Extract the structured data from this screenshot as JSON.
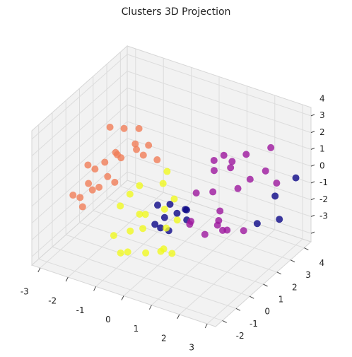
{
  "chart_data": {
    "type": "scatter3d",
    "title": "Clusters 3D Projection",
    "xlim": [
      -3.3,
      3.3
    ],
    "ylim": [
      -2.5,
      4.5
    ],
    "zlim": [
      -3.5,
      4.5
    ],
    "xticks": [
      -3,
      -2,
      -1,
      0,
      1,
      2,
      3
    ],
    "yticks": [
      -2,
      -1,
      0,
      1,
      2,
      3,
      4
    ],
    "zticks": [
      -3,
      -2,
      -1,
      0,
      1,
      2,
      3,
      4
    ],
    "grid": true,
    "series": [
      {
        "color": "#0d0887",
        "x": [
          0.0,
          0.3,
          -0.2,
          0.5,
          0.1,
          -0.3,
          0.4,
          2.5,
          3.0,
          2.8,
          0.2,
          -0.1,
          2.2,
          0.6
        ],
        "y": [
          0.5,
          0.8,
          0.2,
          1.0,
          0.0,
          0.6,
          1.3,
          3.5,
          4.0,
          3.2,
          0.4,
          1.1,
          2.8,
          0.9
        ],
        "z": [
          -1.0,
          -0.8,
          -1.3,
          -0.6,
          -1.2,
          -0.5,
          -0.9,
          -0.5,
          0.5,
          -1.5,
          -1.6,
          -0.7,
          -1.8,
          -1.1
        ]
      },
      {
        "color": "#f07d57",
        "x": [
          -2.5,
          -2.1,
          -1.8,
          -2.8,
          -1.5,
          -2.3,
          -2.0,
          -1.2,
          -2.6,
          -1.9,
          -2.2,
          -1.6,
          -2.9,
          -1.4,
          -2.4,
          -1.7,
          -2.0,
          -1.1,
          -2.7,
          -1.3,
          -2.5,
          -1.8
        ],
        "y": [
          0.5,
          1.2,
          0.0,
          -0.5,
          1.5,
          2.0,
          -1.0,
          0.8,
          1.0,
          2.5,
          -0.3,
          0.3,
          0.8,
          1.8,
          -0.8,
          1.0,
          0.2,
          2.2,
          0.0,
          -0.5,
          1.6,
          3.0
        ],
        "z": [
          0.5,
          1.2,
          0.8,
          -0.5,
          1.5,
          0.2,
          1.0,
          2.5,
          -1.0,
          1.8,
          0.0,
          2.0,
          0.3,
          1.0,
          -0.2,
          3.0,
          1.4,
          0.6,
          -1.5,
          1.1,
          2.2,
          0.5
        ]
      },
      {
        "color": "#9c179e",
        "x": [
          1.0,
          1.5,
          0.8,
          2.0,
          1.2,
          0.5,
          1.8,
          2.5,
          1.3,
          0.9,
          1.6,
          2.2,
          0.7,
          1.1,
          1.9,
          2.8,
          1.4,
          0.6,
          2.3,
          1.7,
          1.0,
          2.0
        ],
        "y": [
          2.0,
          1.5,
          2.5,
          1.0,
          3.0,
          1.8,
          2.2,
          2.8,
          0.8,
          3.5,
          1.2,
          3.8,
          1.0,
          2.6,
          0.5,
          3.0,
          1.9,
          2.9,
          1.6,
          3.3,
          0.3,
          2.4
        ],
        "z": [
          0.0,
          -0.5,
          0.8,
          -1.0,
          1.2,
          -0.2,
          0.5,
          1.5,
          -1.5,
          0.3,
          -0.8,
          2.0,
          -1.2,
          1.8,
          -0.4,
          0.8,
          -2.0,
          1.0,
          -1.3,
          0.2,
          -0.7,
          2.5
        ]
      },
      {
        "color": "#f0f921",
        "x": [
          -0.5,
          -0.2,
          0.3,
          -1.0,
          0.0,
          -0.7,
          0.5,
          -0.3,
          0.8,
          -1.2,
          0.2,
          -0.6,
          0.6,
          -0.1,
          -0.9,
          0.4,
          1.0,
          -0.4,
          0.1,
          -0.8
        ],
        "y": [
          -1.0,
          -0.5,
          -1.5,
          0.0,
          0.5,
          -1.8,
          -0.8,
          1.0,
          -1.2,
          -0.3,
          0.8,
          -1.5,
          0.2,
          -2.0,
          0.5,
          -0.2,
          -1.0,
          1.5,
          -1.3,
          0.3
        ],
        "z": [
          -1.0,
          -0.2,
          -1.5,
          0.2,
          -0.5,
          -0.8,
          -1.8,
          0.5,
          -1.2,
          -0.4,
          0.0,
          -2.0,
          -0.6,
          -1.3,
          0.4,
          -0.9,
          -1.5,
          0.8,
          -0.3,
          -1.1
        ]
      }
    ]
  }
}
